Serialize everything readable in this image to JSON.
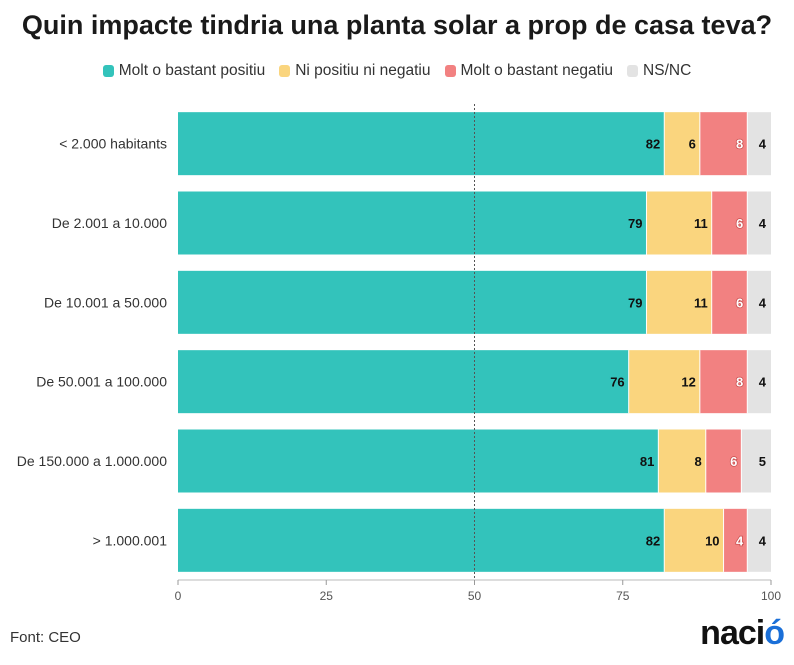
{
  "chart_data": {
    "type": "bar",
    "orientation": "horizontal",
    "stacked": true,
    "title": "Quin impacte tindria una planta solar a prop de casa teva?",
    "categories": [
      "< 2.000 habitants",
      "De 2.001 a 10.000",
      "De 10.001 a 50.000",
      "De 50.001 a 100.000",
      "De 150.000 a 1.000.000",
      "> 1.000.001"
    ],
    "series": [
      {
        "name": "Molt o bastant positiu",
        "color": "#33c3bb",
        "values": [
          82,
          79,
          79,
          76,
          81,
          82
        ]
      },
      {
        "name": "Ni positiu ni negatiu",
        "color": "#fad57e",
        "values": [
          6,
          11,
          11,
          12,
          8,
          10
        ]
      },
      {
        "name": "Molt o bastant negatiu",
        "color": "#f28181",
        "values": [
          8,
          6,
          6,
          8,
          6,
          4
        ]
      },
      {
        "name": "NS/NC",
        "color": "#e3e3e3",
        "values": [
          4,
          4,
          4,
          4,
          5,
          4
        ]
      }
    ],
    "xlim": [
      0,
      100
    ],
    "xticks": [
      0,
      25,
      50,
      75,
      100
    ],
    "reference_line": 50,
    "legend_position": "top"
  },
  "source": "Font: CEO",
  "logo": {
    "main": "naci",
    "accent": "ó"
  }
}
